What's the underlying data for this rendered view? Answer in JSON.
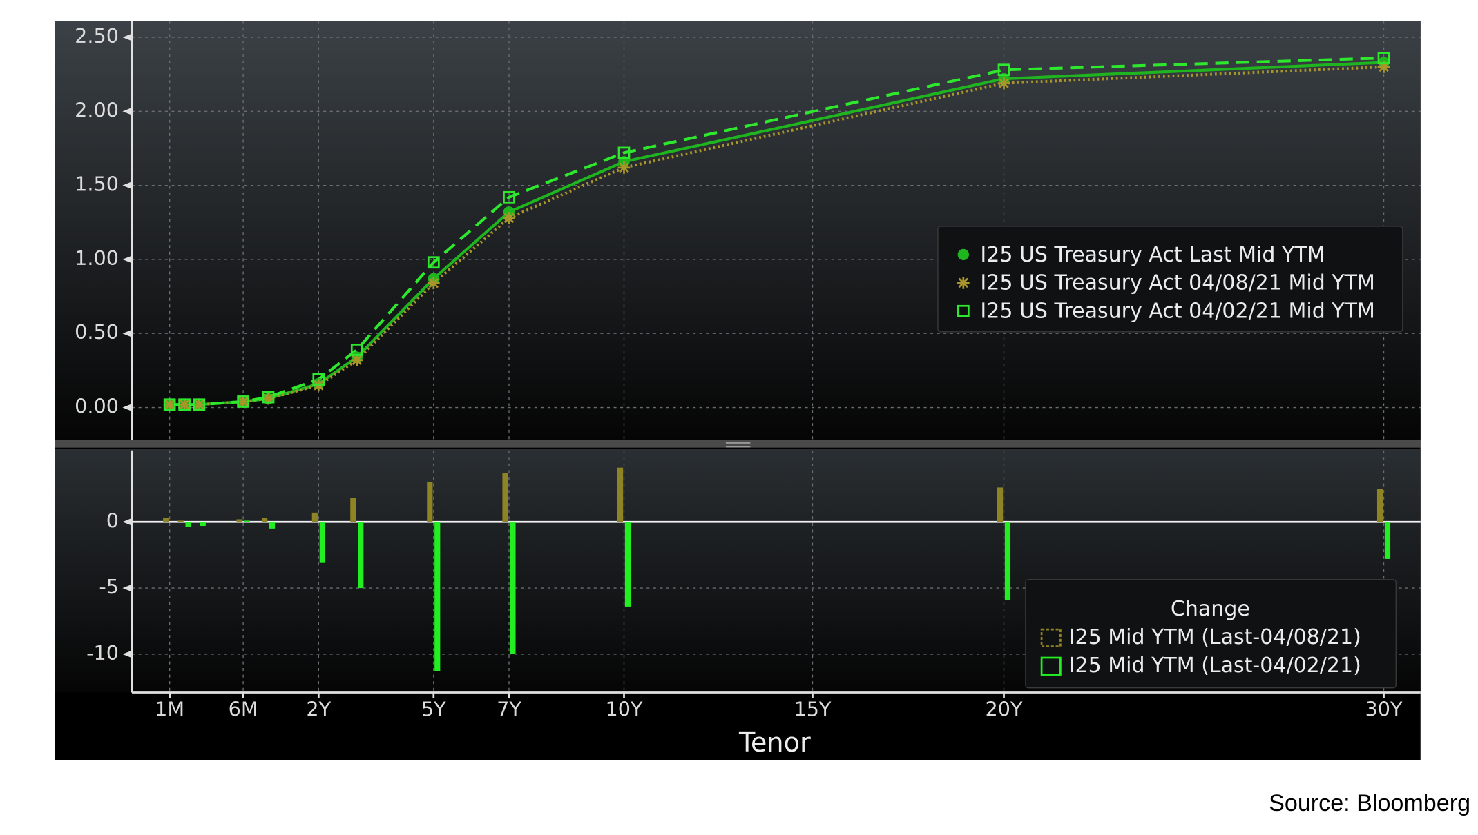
{
  "chart_data": [
    {
      "type": "line",
      "x": [
        0.083,
        0.167,
        0.25,
        0.5,
        1,
        2,
        3,
        5,
        7,
        10,
        20,
        30
      ],
      "xlim": [
        0,
        31
      ],
      "ylim": [
        -0.22,
        2.61
      ],
      "yticks": [
        {
          "value": 0,
          "label": "0.00"
        },
        {
          "value": 0.5,
          "label": "0.50"
        },
        {
          "value": 1,
          "label": "1.00"
        },
        {
          "value": 1.5,
          "label": "1.50"
        },
        {
          "value": 2,
          "label": "2.00"
        },
        {
          "value": 2.5,
          "label": "2.50"
        }
      ],
      "grid": true,
      "legend": "right",
      "series": [
        {
          "name": "I25 US Treasury Act Last Mid YTM",
          "color": "#1fb51f",
          "style": "solid",
          "marker": "circle",
          "values": [
            0.02,
            0.02,
            0.02,
            0.04,
            0.06,
            0.16,
            0.34,
            0.87,
            1.32,
            1.66,
            2.22,
            2.33
          ]
        },
        {
          "name": "I25 US Treasury Act 04/08/21 Mid YTM",
          "color": "#a8962a",
          "style": "dotted",
          "marker": "asterisk",
          "values": [
            0.02,
            0.02,
            0.02,
            0.04,
            0.06,
            0.15,
            0.32,
            0.84,
            1.28,
            1.62,
            2.19,
            2.3
          ]
        },
        {
          "name": "I25 US Treasury Act 04/02/21 Mid YTM",
          "color": "#2ee82e",
          "style": "dashed",
          "marker": "square",
          "values": [
            0.02,
            0.02,
            0.02,
            0.04,
            0.07,
            0.19,
            0.39,
            0.98,
            1.42,
            1.72,
            2.28,
            2.36
          ]
        }
      ]
    },
    {
      "type": "bar",
      "x": [
        0.083,
        0.167,
        0.25,
        0.5,
        1,
        2,
        3,
        5,
        7,
        10,
        20,
        30
      ],
      "xlim": [
        0,
        31
      ],
      "xticks": [
        {
          "value": 0.083,
          "label": "1M"
        },
        {
          "value": 0.5,
          "label": "6M"
        },
        {
          "value": 2,
          "label": "2Y"
        },
        {
          "value": 5,
          "label": "5Y"
        },
        {
          "value": 7,
          "label": "7Y"
        },
        {
          "value": 10,
          "label": "10Y"
        },
        {
          "value": 15,
          "label": "15Y"
        },
        {
          "value": 20,
          "label": "20Y"
        },
        {
          "value": 30,
          "label": "30Y"
        }
      ],
      "xlabel": "Tenor",
      "ylim": [
        -12.9,
        5.4
      ],
      "yticks": [
        -10,
        -5,
        0
      ],
      "grid": true,
      "legend_title": "Change",
      "legend": "lower right",
      "series": [
        {
          "name": "I25 Mid YTM (Last-04/08/21)",
          "color": "#8f8424",
          "values": [
            0.3,
            0.1,
            0,
            0.2,
            0.3,
            0.7,
            1.8,
            3.0,
            3.7,
            4.1,
            2.6,
            2.5
          ]
        },
        {
          "name": "I25 Mid YTM (Last-04/02/21)",
          "color": "#22ee22",
          "values": [
            0,
            -0.4,
            -0.3,
            0.1,
            -0.5,
            -3.1,
            -5.0,
            -11.3,
            -10.0,
            -6.4,
            -5.9,
            -2.8
          ]
        }
      ]
    }
  ],
  "source": "Source: Bloomberg"
}
